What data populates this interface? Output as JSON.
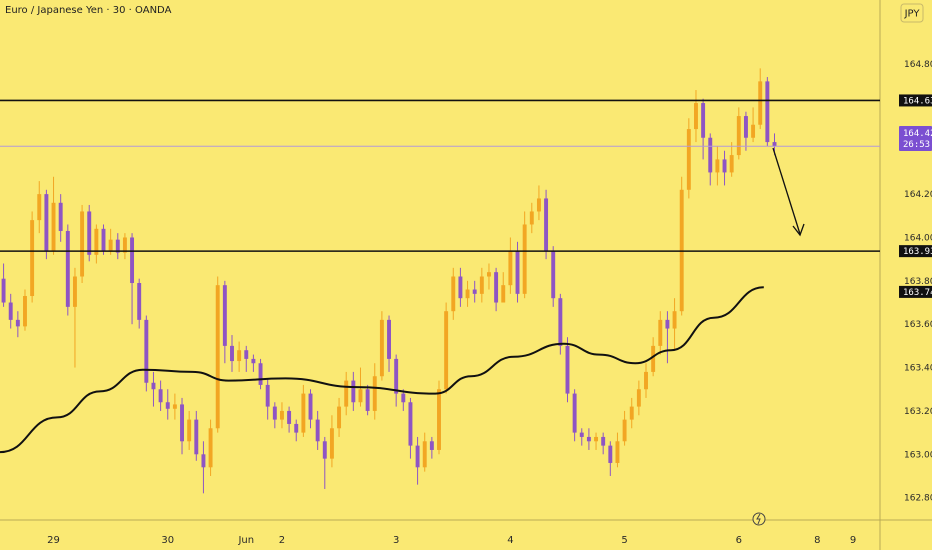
{
  "toolbar": {
    "currency": "JPY"
  },
  "chart_data": {
    "type": "candlestick",
    "title": "Euro / Japanese Yen · 30 · OANDA",
    "ylim": [
      162.72,
      164.98
    ],
    "y_ticks": [
      "162.800",
      "163.000",
      "163.200",
      "163.400",
      "163.600",
      "163.800",
      "164.000",
      "164.200",
      "164.800"
    ],
    "y_tick_values": [
      162.8,
      163.0,
      163.2,
      163.4,
      163.6,
      163.8,
      164.0,
      164.2,
      164.8
    ],
    "x_ticks": [
      {
        "label": "29",
        "t": 7.5
      },
      {
        "label": "30",
        "t": 23.5
      },
      {
        "label": "Jun",
        "t": 34.5
      },
      {
        "label": "2",
        "t": 39.5
      },
      {
        "label": "3",
        "t": 55.5
      },
      {
        "label": "4",
        "t": 71.5
      },
      {
        "label": "5",
        "t": 87.5
      },
      {
        "label": "6",
        "t": 103.5
      },
      {
        "label": "8",
        "t": 114.5
      },
      {
        "label": "9",
        "t": 119.5
      }
    ],
    "levels": [
      {
        "value": 164.632,
        "label": "164.632",
        "style": "solid-black"
      },
      {
        "value": 163.937,
        "label": "163.937",
        "style": "solid-black"
      },
      {
        "value": 164.421,
        "label": "164.421",
        "style": "thin-purple"
      }
    ],
    "current_price": {
      "value": 164.421,
      "label": "164.421",
      "countdown": "26:53"
    },
    "ma_last": {
      "value": 163.749,
      "label": "163.749"
    },
    "ma": [
      {
        "t": 0,
        "v": 163.01
      },
      {
        "t": 8,
        "v": 163.17
      },
      {
        "t": 14,
        "v": 163.29
      },
      {
        "t": 20,
        "v": 163.39
      },
      {
        "t": 27,
        "v": 163.38
      },
      {
        "t": 32,
        "v": 163.34
      },
      {
        "t": 40,
        "v": 163.35
      },
      {
        "t": 50,
        "v": 163.31
      },
      {
        "t": 61,
        "v": 163.28
      },
      {
        "t": 66,
        "v": 163.36
      },
      {
        "t": 72,
        "v": 163.45
      },
      {
        "t": 79,
        "v": 163.51
      },
      {
        "t": 84,
        "v": 163.46
      },
      {
        "t": 89,
        "v": 163.42
      },
      {
        "t": 94,
        "v": 163.48
      },
      {
        "t": 100,
        "v": 163.63
      },
      {
        "t": 107,
        "v": 163.77
      }
    ],
    "candles": [
      [
        163.81,
        163.7,
        163.88,
        163.68
      ],
      [
        163.7,
        163.62,
        163.74,
        163.58
      ],
      [
        163.62,
        163.59,
        163.66,
        163.54
      ],
      [
        163.59,
        163.73,
        163.76,
        163.57
      ],
      [
        163.73,
        164.08,
        164.12,
        163.7
      ],
      [
        164.08,
        164.2,
        164.26,
        164.02
      ],
      [
        164.2,
        163.94,
        164.22,
        163.9
      ],
      [
        163.94,
        164.16,
        164.28,
        163.92
      ],
      [
        164.16,
        164.03,
        164.2,
        163.98
      ],
      [
        164.03,
        163.68,
        164.06,
        163.64
      ],
      [
        163.68,
        163.82,
        163.86,
        163.4
      ],
      [
        163.82,
        164.12,
        164.15,
        163.79
      ],
      [
        164.12,
        163.92,
        164.15,
        163.89
      ],
      [
        163.92,
        164.04,
        164.06,
        163.88
      ],
      [
        164.04,
        163.94,
        164.06,
        163.92
      ],
      [
        163.94,
        163.99,
        164.04,
        163.92
      ],
      [
        163.99,
        163.93,
        164.02,
        163.9
      ],
      [
        163.93,
        164.0,
        164.02,
        163.9
      ],
      [
        164.0,
        163.79,
        164.02,
        163.6
      ],
      [
        163.79,
        163.62,
        163.81,
        163.58
      ],
      [
        163.62,
        163.33,
        163.64,
        163.29
      ],
      [
        163.33,
        163.3,
        163.38,
        163.22
      ],
      [
        163.3,
        163.24,
        163.34,
        163.2
      ],
      [
        163.24,
        163.21,
        163.3,
        163.16
      ],
      [
        163.21,
        163.23,
        163.28,
        163.16
      ],
      [
        163.23,
        163.06,
        163.26,
        163.0
      ],
      [
        163.06,
        163.16,
        163.2,
        163.02
      ],
      [
        163.16,
        163.0,
        163.2,
        162.97
      ],
      [
        163.0,
        162.94,
        163.06,
        162.82
      ],
      [
        162.94,
        163.12,
        163.16,
        162.9
      ],
      [
        163.12,
        163.78,
        163.82,
        163.1
      ],
      [
        163.78,
        163.5,
        163.8,
        163.42
      ],
      [
        163.5,
        163.43,
        163.55,
        163.38
      ],
      [
        163.43,
        163.48,
        163.52,
        163.38
      ],
      [
        163.48,
        163.44,
        163.5,
        163.38
      ],
      [
        163.44,
        163.42,
        163.46,
        163.38
      ],
      [
        163.42,
        163.32,
        163.44,
        163.3
      ],
      [
        163.32,
        163.22,
        163.35,
        163.16
      ],
      [
        163.22,
        163.16,
        163.24,
        163.12
      ],
      [
        163.16,
        163.2,
        163.24,
        163.12
      ],
      [
        163.2,
        163.14,
        163.22,
        163.1
      ],
      [
        163.14,
        163.1,
        163.16,
        163.06
      ],
      [
        163.1,
        163.28,
        163.32,
        163.08
      ],
      [
        163.28,
        163.16,
        163.3,
        163.12
      ],
      [
        163.16,
        163.06,
        163.2,
        163.02
      ],
      [
        163.06,
        162.98,
        163.08,
        162.84
      ],
      [
        162.98,
        163.12,
        163.18,
        162.94
      ],
      [
        163.12,
        163.22,
        163.26,
        163.08
      ],
      [
        163.22,
        163.34,
        163.38,
        163.18
      ],
      [
        163.34,
        163.24,
        163.38,
        163.2
      ],
      [
        163.24,
        163.3,
        163.4,
        163.22
      ],
      [
        163.3,
        163.2,
        163.32,
        163.18
      ],
      [
        163.2,
        163.36,
        163.42,
        163.16
      ],
      [
        163.36,
        163.62,
        163.66,
        163.34
      ],
      [
        163.62,
        163.44,
        163.64,
        163.38
      ],
      [
        163.44,
        163.28,
        163.46,
        163.22
      ],
      [
        163.28,
        163.24,
        163.3,
        163.2
      ],
      [
        163.24,
        163.04,
        163.26,
        162.98
      ],
      [
        163.04,
        162.94,
        163.08,
        162.86
      ],
      [
        162.94,
        163.06,
        163.1,
        162.92
      ],
      [
        163.06,
        163.02,
        163.08,
        162.98
      ],
      [
        163.02,
        163.3,
        163.34,
        163.0
      ],
      [
        163.3,
        163.66,
        163.7,
        163.28
      ],
      [
        163.66,
        163.82,
        163.86,
        163.62
      ],
      [
        163.82,
        163.72,
        163.86,
        163.68
      ],
      [
        163.72,
        163.76,
        163.8,
        163.68
      ],
      [
        163.76,
        163.74,
        163.8,
        163.7
      ],
      [
        163.74,
        163.82,
        163.86,
        163.7
      ],
      [
        163.82,
        163.84,
        163.88,
        163.76
      ],
      [
        163.84,
        163.7,
        163.86,
        163.66
      ],
      [
        163.7,
        163.78,
        163.84,
        163.72
      ],
      [
        163.78,
        163.94,
        164.0,
        163.74
      ],
      [
        163.94,
        163.74,
        163.98,
        163.7
      ],
      [
        163.74,
        164.06,
        164.12,
        163.72
      ],
      [
        164.06,
        164.12,
        164.16,
        164.02
      ],
      [
        164.12,
        164.18,
        164.24,
        164.08
      ],
      [
        164.18,
        163.94,
        164.22,
        163.9
      ],
      [
        163.94,
        163.72,
        163.96,
        163.68
      ],
      [
        163.72,
        163.5,
        163.74,
        163.46
      ],
      [
        163.5,
        163.28,
        163.54,
        163.24
      ],
      [
        163.28,
        163.1,
        163.3,
        163.06
      ],
      [
        163.1,
        163.08,
        163.12,
        163.04
      ],
      [
        163.08,
        163.06,
        163.12,
        163.02
      ],
      [
        163.06,
        163.08,
        163.1,
        163.02
      ],
      [
        163.08,
        163.04,
        163.1,
        163.0
      ],
      [
        163.04,
        162.96,
        163.06,
        162.9
      ],
      [
        162.96,
        163.06,
        163.1,
        162.94
      ],
      [
        163.06,
        163.16,
        163.2,
        163.04
      ],
      [
        163.16,
        163.22,
        163.26,
        163.12
      ],
      [
        163.22,
        163.3,
        163.34,
        163.18
      ],
      [
        163.3,
        163.38,
        163.42,
        163.26
      ],
      [
        163.38,
        163.5,
        163.54,
        163.36
      ],
      [
        163.5,
        163.62,
        163.66,
        163.46
      ],
      [
        163.62,
        163.58,
        163.66,
        163.42
      ],
      [
        163.58,
        163.66,
        163.72,
        163.48
      ],
      [
        163.66,
        164.22,
        164.28,
        163.64
      ],
      [
        164.22,
        164.5,
        164.55,
        164.18
      ],
      [
        164.5,
        164.62,
        164.68,
        164.44
      ],
      [
        164.62,
        164.46,
        164.64,
        164.36
      ],
      [
        164.46,
        164.3,
        164.48,
        164.24
      ],
      [
        164.3,
        164.36,
        164.42,
        164.24
      ],
      [
        164.36,
        164.3,
        164.4,
        164.24
      ],
      [
        164.3,
        164.38,
        164.44,
        164.28
      ],
      [
        164.38,
        164.56,
        164.6,
        164.36
      ],
      [
        164.56,
        164.46,
        164.58,
        164.4
      ],
      [
        164.46,
        164.52,
        164.6,
        164.44
      ],
      [
        164.52,
        164.72,
        164.78,
        164.5
      ],
      [
        164.72,
        164.44,
        164.74,
        164.42
      ],
      [
        164.44,
        164.42,
        164.48,
        164.38
      ]
    ]
  }
}
